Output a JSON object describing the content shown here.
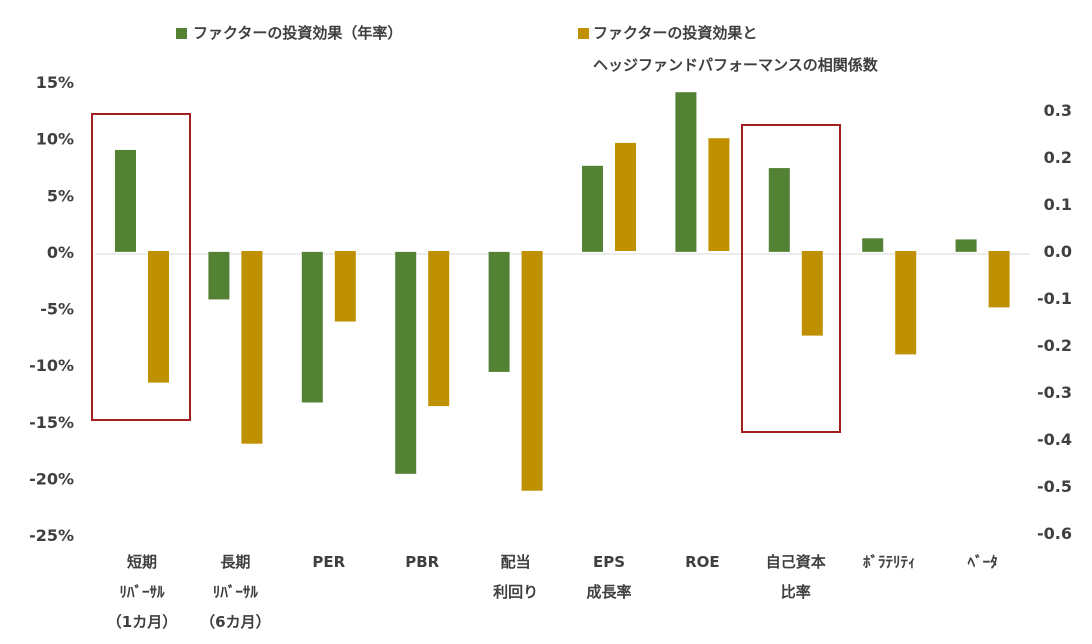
{
  "chart_data": {
    "type": "bar",
    "categories": [
      [
        "短期",
        "ﾘﾊﾞｰｻﾙ",
        "（1カ月）"
      ],
      [
        "長期",
        "ﾘﾊﾞｰｻﾙ",
        "（6カ月）"
      ],
      [
        "PER"
      ],
      [
        "PBR"
      ],
      [
        "配当",
        "利回り"
      ],
      [
        "EPS",
        "成長率"
      ],
      [
        "ROE"
      ],
      [
        "自己資本",
        "比率"
      ],
      [
        "ﾎﾞﾗﾃﾘﾃｨ"
      ],
      [
        "ﾍﾞｰﾀ"
      ]
    ],
    "series": [
      {
        "name": "ファクターの投資効果（年率）",
        "axis": "left",
        "unit": "percent",
        "color": "#548235",
        "values": [
          9.0,
          -4.2,
          -13.3,
          -19.6,
          -10.6,
          7.6,
          14.1,
          7.4,
          1.2,
          1.1
        ]
      },
      {
        "name": "ファクターの投資効果とヘッジファンドパフォーマンスの相関係数",
        "name_lines": [
          "ファクターの投資効果と",
          "ヘッジファンドパフォーマンスの相関係数"
        ],
        "axis": "right",
        "unit": "correlation",
        "color": "#bf9000",
        "values": [
          -0.28,
          -0.41,
          -0.15,
          -0.33,
          -0.51,
          0.23,
          0.24,
          -0.18,
          -0.22,
          -0.12
        ]
      }
    ],
    "y_left": {
      "ylim": [
        -25,
        15
      ],
      "ticks": [
        15,
        10,
        5,
        0,
        -5,
        -10,
        -15,
        -20,
        -25
      ],
      "tick_labels": [
        "15%",
        "10%",
        "5%",
        "0%",
        "-5%",
        "-10%",
        "-15%",
        "-20%",
        "-25%"
      ]
    },
    "y_right": {
      "ylim": [
        -0.6,
        0.3
      ],
      "ticks": [
        0.3,
        0.2,
        0.1,
        0.0,
        -0.1,
        -0.2,
        -0.3,
        -0.4,
        -0.5,
        -0.6
      ],
      "tick_labels": [
        "0.3",
        "0.2",
        "0.1",
        "0.0",
        "-0.1",
        "-0.2",
        "-0.3",
        "-0.4",
        "-0.5",
        "-0.6"
      ]
    },
    "highlight_categories": [
      0,
      7
    ],
    "highlight_color": "#a01e1e",
    "grid": false,
    "legend_position": "top"
  }
}
